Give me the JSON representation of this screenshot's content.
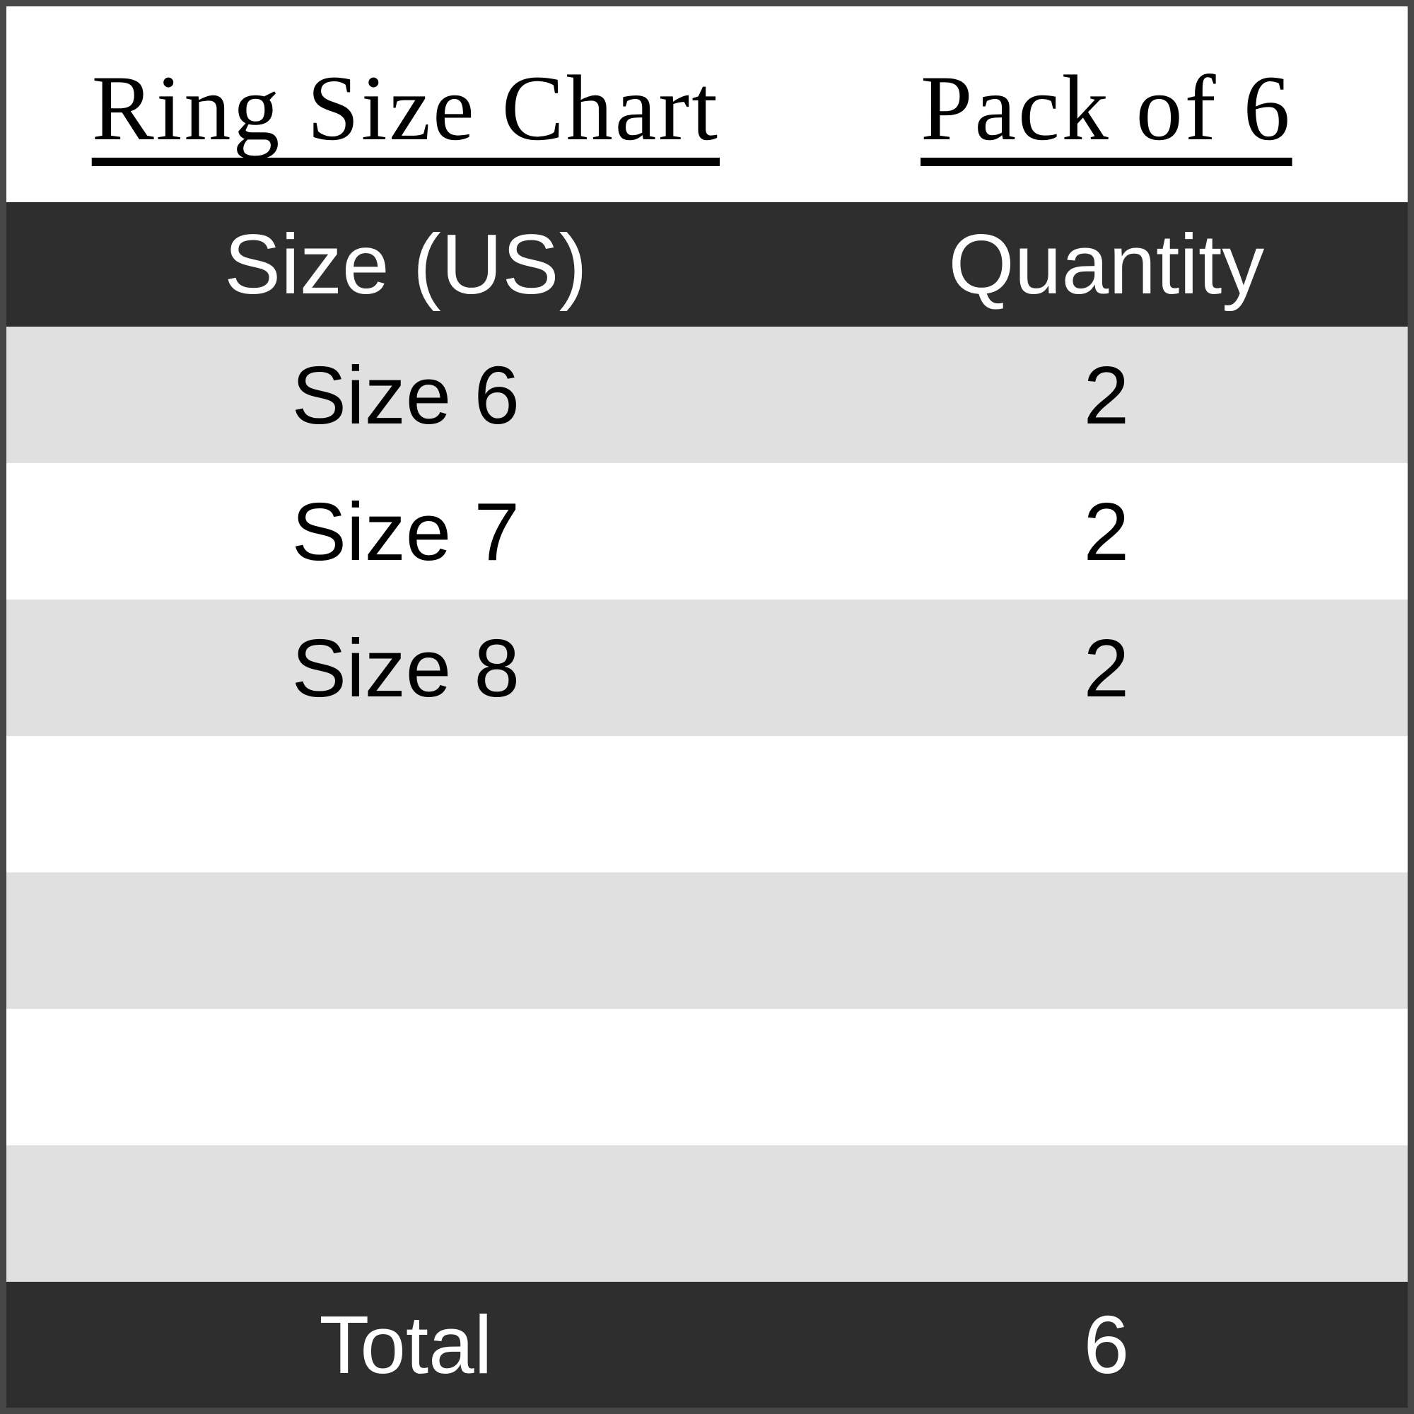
{
  "chart_data": {
    "type": "table",
    "title": "Ring Size Chart",
    "subtitle": "Pack of 6",
    "columns": [
      "Size (US)",
      "Quantity"
    ],
    "rows": [
      [
        "Size 6",
        2
      ],
      [
        "Size 7",
        2
      ],
      [
        "Size 8",
        2
      ]
    ],
    "total_label": "Total",
    "total_value": 6,
    "empty_trailing_rows": 4,
    "layout_hints": {
      "striped": true,
      "stripe_color": "#e0e0e0",
      "header_footer_color": "#2e2e2e",
      "title_underlined": true
    }
  },
  "titles": {
    "left": "Ring Size Chart",
    "right": "Pack of 6"
  },
  "header": {
    "size": "Size (US)",
    "quantity": "Quantity"
  },
  "rows": [
    {
      "size": "Size 6",
      "qty": "2"
    },
    {
      "size": "Size 7",
      "qty": "2"
    },
    {
      "size": "Size 8",
      "qty": "2"
    },
    {
      "size": "",
      "qty": ""
    },
    {
      "size": "",
      "qty": ""
    },
    {
      "size": "",
      "qty": ""
    },
    {
      "size": "",
      "qty": ""
    }
  ],
  "footer": {
    "label": "Total",
    "value": "6"
  },
  "colors": {
    "dark_band": "#2e2e2e",
    "stripe": "#e0e0e0",
    "white": "#ffffff",
    "frame_border": "#474747",
    "frame_inner_line": "#1a1a1a",
    "text_dark": "#000000",
    "text_light": "#ffffff"
  }
}
